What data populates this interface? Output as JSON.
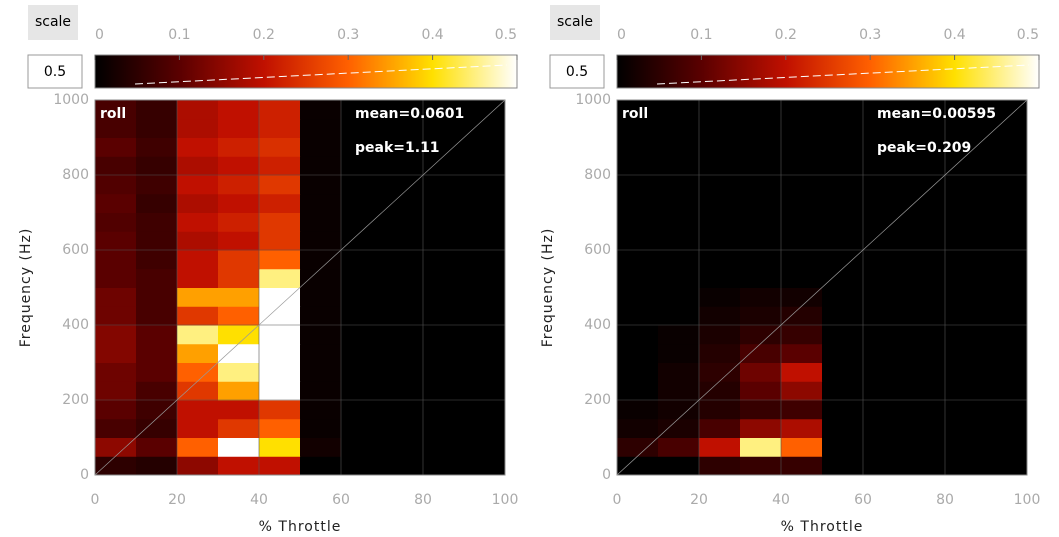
{
  "chart_data": [
    {
      "type": "heatmap",
      "scale_label": "scale",
      "scale_value": 0.5,
      "label": "roll",
      "mean": "mean=0.0601",
      "peak": "peak=1.11",
      "xlabel": "% Throttle",
      "ylabel": "Frequency (Hz)",
      "xlim": [
        0,
        100
      ],
      "ylim": [
        0,
        1000
      ],
      "xticks": [
        0,
        20,
        40,
        60,
        80,
        100
      ],
      "yticks": [
        0,
        200,
        400,
        600,
        800,
        1000
      ],
      "colorbar_lim": [
        0,
        0.5
      ],
      "colorbar_ticks": [
        0,
        0.1,
        0.2,
        0.3,
        0.4,
        0.5
      ],
      "colormap": [
        "#000000",
        "#5a0000",
        "#c01000",
        "#ff6000",
        "#ffe000",
        "#ffffff"
      ],
      "grid": true,
      "x_bins": [
        0,
        10,
        20,
        30,
        40,
        50,
        60,
        70,
        80,
        90,
        100
      ],
      "y_bins": [
        0,
        50,
        100,
        150,
        200,
        250,
        300,
        350,
        400,
        450,
        500,
        550,
        600,
        650,
        700,
        750,
        800,
        850,
        900,
        950,
        1000
      ],
      "values": [
        [
          0.05,
          0.04,
          0.15,
          0.2,
          0.2,
          0,
          0,
          0,
          0,
          0
        ],
        [
          0.15,
          0.1,
          0.3,
          0.5,
          0.4,
          0.02,
          0,
          0,
          0,
          0
        ],
        [
          0.08,
          0.06,
          0.2,
          0.25,
          0.3,
          0.01,
          0,
          0,
          0,
          0
        ],
        [
          0.1,
          0.07,
          0.2,
          0.2,
          0.25,
          0.01,
          0,
          0,
          0,
          0
        ],
        [
          0.12,
          0.08,
          0.25,
          0.35,
          0.5,
          0.01,
          0,
          0,
          0,
          0
        ],
        [
          0.12,
          0.1,
          0.3,
          0.45,
          0.6,
          0.01,
          0,
          0,
          0,
          0
        ],
        [
          0.14,
          0.1,
          0.35,
          0.5,
          0.55,
          0.01,
          0,
          0,
          0,
          0
        ],
        [
          0.14,
          0.1,
          0.45,
          0.4,
          0.6,
          0.01,
          0,
          0,
          0,
          0
        ],
        [
          0.12,
          0.08,
          0.25,
          0.3,
          0.55,
          0.01,
          0,
          0,
          0,
          0
        ],
        [
          0.12,
          0.08,
          0.35,
          0.35,
          0.5,
          0.01,
          0,
          0,
          0,
          0
        ],
        [
          0.1,
          0.08,
          0.2,
          0.25,
          0.45,
          0.01,
          0,
          0,
          0,
          0
        ],
        [
          0.1,
          0.07,
          0.2,
          0.25,
          0.3,
          0.01,
          0,
          0,
          0,
          0
        ],
        [
          0.1,
          0.07,
          0.18,
          0.2,
          0.25,
          0.01,
          0,
          0,
          0,
          0
        ],
        [
          0.09,
          0.07,
          0.2,
          0.22,
          0.25,
          0.01,
          0,
          0,
          0,
          0
        ],
        [
          0.1,
          0.06,
          0.18,
          0.2,
          0.22,
          0.01,
          0,
          0,
          0,
          0
        ],
        [
          0.09,
          0.07,
          0.2,
          0.22,
          0.25,
          0.01,
          0,
          0,
          0,
          0
        ],
        [
          0.08,
          0.06,
          0.18,
          0.2,
          0.22,
          0.01,
          0,
          0,
          0,
          0
        ],
        [
          0.1,
          0.07,
          0.2,
          0.22,
          0.24,
          0.01,
          0,
          0,
          0,
          0
        ],
        [
          0.08,
          0.06,
          0.18,
          0.2,
          0.22,
          0.01,
          0,
          0,
          0,
          0
        ],
        [
          0.08,
          0.06,
          0.18,
          0.2,
          0.22,
          0.01,
          0,
          0,
          0,
          0
        ]
      ]
    },
    {
      "type": "heatmap",
      "scale_label": "scale",
      "scale_value": 0.5,
      "label": "roll",
      "mean": "mean=0.00595",
      "peak": "peak=0.209",
      "xlabel": "% Throttle",
      "ylabel": "Frequency (Hz)",
      "xlim": [
        0,
        100
      ],
      "ylim": [
        0,
        1000
      ],
      "xticks": [
        0,
        20,
        40,
        60,
        80,
        100
      ],
      "yticks": [
        0,
        200,
        400,
        600,
        800,
        1000
      ],
      "colorbar_lim": [
        0,
        0.5
      ],
      "colorbar_ticks": [
        0,
        0.1,
        0.2,
        0.3,
        0.4,
        0.5
      ],
      "colormap": [
        "#000000",
        "#5a0000",
        "#c01000",
        "#ff6000",
        "#ffe000",
        "#ffffff"
      ],
      "grid": true,
      "x_bins": [
        0,
        10,
        20,
        30,
        40,
        50,
        60,
        70,
        80,
        90,
        100
      ],
      "y_bins": [
        0,
        50,
        100,
        150,
        200,
        250,
        300,
        350,
        400,
        450,
        500,
        550,
        600,
        650,
        700,
        750,
        800,
        850,
        900,
        950,
        1000
      ],
      "values": [
        [
          0,
          0,
          0.05,
          0.06,
          0.06,
          0,
          0,
          0,
          0,
          0
        ],
        [
          0.05,
          0.08,
          0.2,
          0.45,
          0.3,
          0,
          0,
          0,
          0,
          0
        ],
        [
          0.02,
          0.03,
          0.08,
          0.15,
          0.18,
          0,
          0,
          0,
          0,
          0
        ],
        [
          0.01,
          0.02,
          0.04,
          0.06,
          0.07,
          0,
          0,
          0,
          0,
          0
        ],
        [
          0,
          0.02,
          0.04,
          0.1,
          0.15,
          0,
          0,
          0,
          0,
          0
        ],
        [
          0,
          0.02,
          0.05,
          0.12,
          0.2,
          0,
          0,
          0,
          0,
          0
        ],
        [
          0,
          0.01,
          0.04,
          0.08,
          0.1,
          0,
          0,
          0,
          0,
          0
        ],
        [
          0,
          0.01,
          0.03,
          0.05,
          0.06,
          0,
          0,
          0,
          0,
          0
        ],
        [
          0,
          0,
          0.02,
          0.03,
          0.04,
          0,
          0,
          0,
          0,
          0
        ],
        [
          0,
          0,
          0.01,
          0.02,
          0.02,
          0,
          0,
          0,
          0,
          0
        ],
        [
          0,
          0,
          0,
          0,
          0,
          0,
          0,
          0,
          0,
          0
        ],
        [
          0,
          0,
          0,
          0,
          0,
          0,
          0,
          0,
          0,
          0
        ],
        [
          0,
          0,
          0,
          0,
          0,
          0,
          0,
          0,
          0,
          0
        ],
        [
          0,
          0,
          0,
          0,
          0,
          0,
          0,
          0,
          0,
          0
        ],
        [
          0,
          0,
          0,
          0,
          0,
          0,
          0,
          0,
          0,
          0
        ],
        [
          0,
          0,
          0,
          0,
          0,
          0,
          0,
          0,
          0,
          0
        ],
        [
          0,
          0,
          0,
          0,
          0,
          0,
          0,
          0,
          0,
          0
        ],
        [
          0,
          0,
          0,
          0,
          0,
          0,
          0,
          0,
          0,
          0
        ],
        [
          0,
          0,
          0,
          0,
          0,
          0,
          0,
          0,
          0,
          0
        ],
        [
          0,
          0,
          0,
          0,
          0,
          0,
          0,
          0,
          0,
          0
        ]
      ]
    }
  ]
}
